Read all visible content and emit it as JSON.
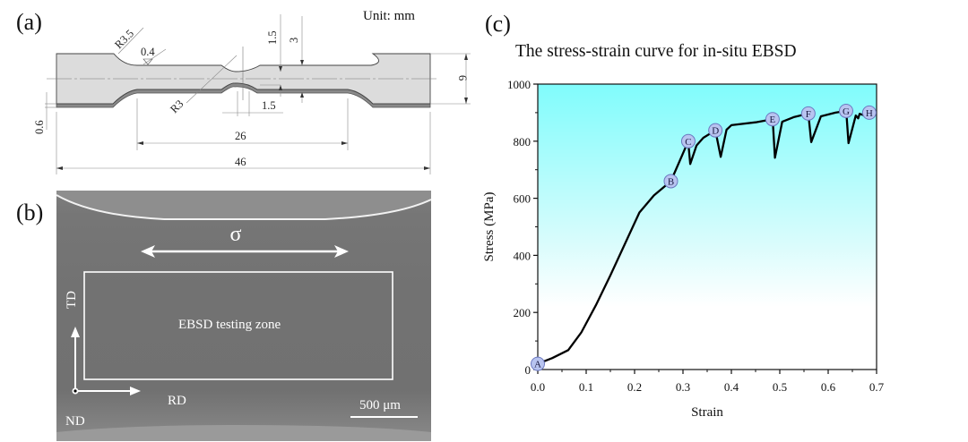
{
  "panels": {
    "a": {
      "label": "(a)",
      "unit": "Unit: mm",
      "dims": {
        "r_large": "R3.5",
        "r_small": "R3",
        "roughness": "0.4",
        "depth_notch": "1.5",
        "gauge_half": "3",
        "notch_width": "1.5",
        "thickness": "0.6",
        "gauge_length": "26",
        "total_length": "46",
        "width": "6"
      }
    },
    "b": {
      "label": "(b)",
      "stress_symbol": "σ",
      "zone_label": "EBSD testing zone",
      "axis_td": "TD",
      "axis_rd": "RD",
      "axis_nd": "ND",
      "scale_bar": "500 μm"
    },
    "c": {
      "label": "(c)"
    }
  },
  "chart_data": {
    "type": "line",
    "title": "The stress-strain curve for in-situ EBSD",
    "xlabel": "Strain",
    "ylabel": "Stress (MPa)",
    "xlim": [
      0,
      0.7
    ],
    "ylim": [
      0,
      1000
    ],
    "xticks": [
      "0.0",
      "0.1",
      "0.2",
      "0.3",
      "0.4",
      "0.5",
      "0.6",
      "0.7"
    ],
    "yticks": [
      "0",
      "200",
      "400",
      "600",
      "800",
      "1000"
    ],
    "grid": false,
    "background": {
      "top": "#80fcfc",
      "bottom": "#ffffff"
    },
    "line_color": "#000000",
    "marker_color": "#b8c4f0",
    "series": [
      {
        "name": "stress-strain",
        "x": [
          0.0,
          0.03,
          0.063,
          0.09,
          0.12,
          0.15,
          0.18,
          0.21,
          0.24,
          0.275,
          0.311,
          0.312,
          0.315,
          0.328,
          0.342,
          0.367,
          0.369,
          0.378,
          0.39,
          0.4,
          0.45,
          0.485,
          0.486,
          0.49,
          0.505,
          0.53,
          0.559,
          0.56,
          0.565,
          0.585,
          0.615,
          0.637,
          0.638,
          0.642,
          0.657,
          0.662,
          0.665,
          0.672,
          0.685
        ],
        "y": [
          20,
          40,
          68,
          130,
          225,
          330,
          440,
          550,
          610,
          660,
          800,
          775,
          720,
          785,
          812,
          838,
          820,
          745,
          840,
          856,
          866,
          877,
          860,
          742,
          868,
          885,
          897,
          880,
          797,
          887,
          900,
          906,
          890,
          793,
          890,
          880,
          896,
          892,
          900
        ]
      }
    ],
    "annotations": [
      {
        "label": "A",
        "x": 0.0,
        "y": 20
      },
      {
        "label": "B",
        "x": 0.275,
        "y": 660
      },
      {
        "label": "C",
        "x": 0.311,
        "y": 800
      },
      {
        "label": "D",
        "x": 0.367,
        "y": 838
      },
      {
        "label": "E",
        "x": 0.485,
        "y": 877
      },
      {
        "label": "F",
        "x": 0.559,
        "y": 897
      },
      {
        "label": "G",
        "x": 0.637,
        "y": 906
      },
      {
        "label": "H",
        "x": 0.685,
        "y": 900
      }
    ]
  }
}
